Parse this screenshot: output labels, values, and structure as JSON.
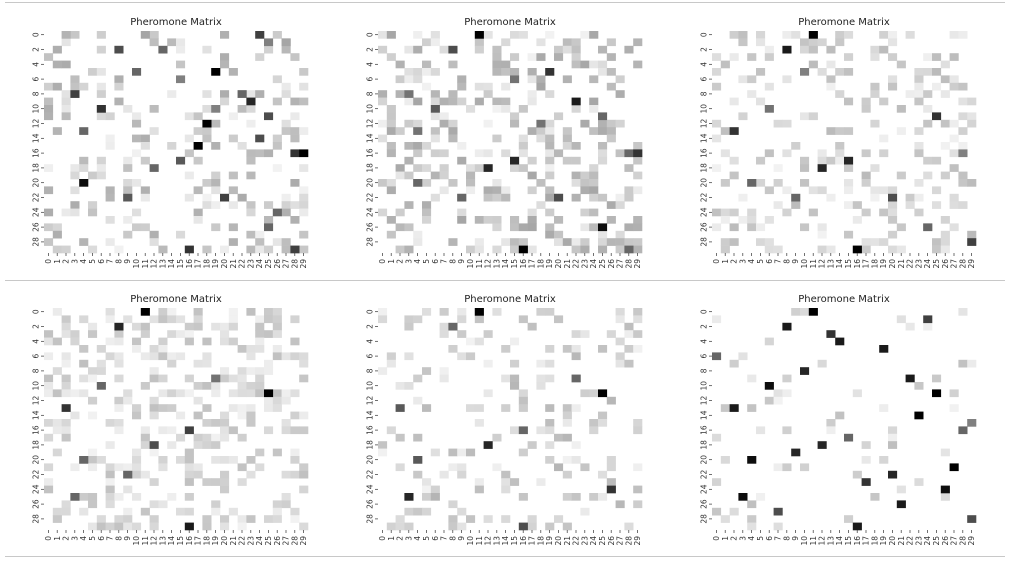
{
  "chart_data": [
    {
      "type": "heatmap",
      "title": "Pheromone Matrix",
      "xlabel": "",
      "ylabel": "",
      "x_ticks": [
        "0",
        "1",
        "2",
        "3",
        "4",
        "5",
        "6",
        "7",
        "8",
        "9",
        "10",
        "11",
        "12",
        "13",
        "14",
        "15",
        "16",
        "17",
        "18",
        "19",
        "20",
        "21",
        "22",
        "23",
        "24",
        "25",
        "26",
        "27",
        "28",
        "29"
      ],
      "y_ticks": [
        "0",
        "2",
        "4",
        "6",
        "8",
        "10",
        "12",
        "14",
        "16",
        "18",
        "20",
        "22",
        "24",
        "26",
        "28"
      ],
      "colormap": "Greys",
      "cells": [
        {
          "row": 0,
          "col": 2,
          "value": 0.3
        },
        {
          "row": 0,
          "col": 11,
          "value": 0.35
        },
        {
          "row": 0,
          "col": 24,
          "value": 0.75
        },
        {
          "row": 1,
          "col": 25,
          "value": 0.5
        },
        {
          "row": 1,
          "col": 27,
          "value": 0.35
        },
        {
          "row": 2,
          "col": 13,
          "value": 0.6
        },
        {
          "row": 2,
          "col": 8,
          "value": 0.7
        },
        {
          "row": 5,
          "col": 19,
          "value": 1.0
        },
        {
          "row": 5,
          "col": 10,
          "value": 0.6
        },
        {
          "row": 6,
          "col": 15,
          "value": 0.5
        },
        {
          "row": 8,
          "col": 3,
          "value": 0.75
        },
        {
          "row": 8,
          "col": 22,
          "value": 0.6
        },
        {
          "row": 9,
          "col": 23,
          "value": 0.85
        },
        {
          "row": 10,
          "col": 6,
          "value": 0.8
        },
        {
          "row": 10,
          "col": 19,
          "value": 0.5
        },
        {
          "row": 11,
          "col": 25,
          "value": 0.7
        },
        {
          "row": 12,
          "col": 18,
          "value": 1.0
        },
        {
          "row": 13,
          "col": 4,
          "value": 0.6
        },
        {
          "row": 14,
          "col": 24,
          "value": 0.7
        },
        {
          "row": 15,
          "col": 17,
          "value": 1.0
        },
        {
          "row": 16,
          "col": 28,
          "value": 0.8
        },
        {
          "row": 16,
          "col": 29,
          "value": 1.0
        },
        {
          "row": 17,
          "col": 15,
          "value": 0.65
        },
        {
          "row": 18,
          "col": 12,
          "value": 0.6
        },
        {
          "row": 20,
          "col": 4,
          "value": 0.95
        },
        {
          "row": 22,
          "col": 9,
          "value": 0.65
        },
        {
          "row": 22,
          "col": 20,
          "value": 0.75
        },
        {
          "row": 24,
          "col": 26,
          "value": 0.6
        },
        {
          "row": 26,
          "col": 25,
          "value": 0.6
        },
        {
          "row": 29,
          "col": 16,
          "value": 0.8
        },
        {
          "row": 29,
          "col": 28,
          "value": 0.75
        }
      ]
    },
    {
      "type": "heatmap",
      "title": "Pheromone Matrix",
      "xlabel": "",
      "ylabel": "",
      "x_ticks": [
        "0",
        "1",
        "2",
        "3",
        "4",
        "5",
        "6",
        "7",
        "8",
        "9",
        "10",
        "11",
        "12",
        "13",
        "14",
        "15",
        "16",
        "17",
        "18",
        "19",
        "20",
        "21",
        "22",
        "23",
        "24",
        "25",
        "26",
        "27",
        "28",
        "29"
      ],
      "y_ticks": [
        "0",
        "2",
        "4",
        "6",
        "8",
        "10",
        "12",
        "14",
        "16",
        "18",
        "20",
        "22",
        "24",
        "26",
        "28"
      ],
      "colormap": "Greys",
      "cells": [
        {
          "row": 0,
          "col": 11,
          "value": 1.0
        },
        {
          "row": 2,
          "col": 8,
          "value": 0.7
        },
        {
          "row": 5,
          "col": 19,
          "value": 0.8
        },
        {
          "row": 6,
          "col": 15,
          "value": 0.55
        },
        {
          "row": 8,
          "col": 3,
          "value": 0.55
        },
        {
          "row": 9,
          "col": 22,
          "value": 0.9
        },
        {
          "row": 10,
          "col": 6,
          "value": 0.65
        },
        {
          "row": 11,
          "col": 25,
          "value": 0.6
        },
        {
          "row": 12,
          "col": 18,
          "value": 0.55
        },
        {
          "row": 13,
          "col": 4,
          "value": 0.55
        },
        {
          "row": 16,
          "col": 28,
          "value": 0.6
        },
        {
          "row": 16,
          "col": 29,
          "value": 0.8
        },
        {
          "row": 17,
          "col": 15,
          "value": 0.85
        },
        {
          "row": 18,
          "col": 12,
          "value": 0.85
        },
        {
          "row": 20,
          "col": 4,
          "value": 0.6
        },
        {
          "row": 22,
          "col": 9,
          "value": 0.6
        },
        {
          "row": 22,
          "col": 20,
          "value": 0.7
        },
        {
          "row": 26,
          "col": 25,
          "value": 0.95
        },
        {
          "row": 29,
          "col": 16,
          "value": 1.0
        },
        {
          "row": 29,
          "col": 28,
          "value": 0.6
        }
      ]
    },
    {
      "type": "heatmap",
      "title": "Pheromone Matrix",
      "xlabel": "",
      "ylabel": "",
      "x_ticks": [
        "0",
        "1",
        "2",
        "3",
        "4",
        "5",
        "6",
        "7",
        "8",
        "9",
        "10",
        "11",
        "12",
        "13",
        "14",
        "15",
        "16",
        "17",
        "18",
        "19",
        "20",
        "21",
        "22",
        "23",
        "24",
        "25",
        "26",
        "27",
        "28",
        "29"
      ],
      "y_ticks": [
        "0",
        "2",
        "4",
        "6",
        "8",
        "10",
        "12",
        "14",
        "16",
        "18",
        "20",
        "22",
        "24",
        "26",
        "28"
      ],
      "colormap": "Greys",
      "cells": [
        {
          "row": 0,
          "col": 11,
          "value": 1.0
        },
        {
          "row": 2,
          "col": 8,
          "value": 0.9
        },
        {
          "row": 5,
          "col": 10,
          "value": 0.5
        },
        {
          "row": 10,
          "col": 6,
          "value": 0.55
        },
        {
          "row": 11,
          "col": 25,
          "value": 0.8
        },
        {
          "row": 13,
          "col": 2,
          "value": 0.8
        },
        {
          "row": 16,
          "col": 28,
          "value": 0.5
        },
        {
          "row": 17,
          "col": 15,
          "value": 0.85
        },
        {
          "row": 18,
          "col": 12,
          "value": 0.85
        },
        {
          "row": 20,
          "col": 4,
          "value": 0.6
        },
        {
          "row": 22,
          "col": 9,
          "value": 0.6
        },
        {
          "row": 22,
          "col": 20,
          "value": 0.7
        },
        {
          "row": 26,
          "col": 24,
          "value": 0.6
        },
        {
          "row": 29,
          "col": 16,
          "value": 1.0
        },
        {
          "row": 28,
          "col": 29,
          "value": 0.75
        }
      ]
    },
    {
      "type": "heatmap",
      "title": "Pheromone Matrix",
      "xlabel": "",
      "ylabel": "",
      "x_ticks": [
        "0",
        "1",
        "2",
        "3",
        "4",
        "5",
        "6",
        "7",
        "8",
        "9",
        "10",
        "11",
        "12",
        "13",
        "14",
        "15",
        "16",
        "17",
        "18",
        "19",
        "20",
        "21",
        "22",
        "23",
        "24",
        "25",
        "26",
        "27",
        "28",
        "29"
      ],
      "y_ticks": [
        "0",
        "2",
        "4",
        "6",
        "8",
        "10",
        "12",
        "14",
        "16",
        "18",
        "20",
        "22",
        "24",
        "26",
        "28"
      ],
      "colormap": "Greys",
      "cells": [
        {
          "row": 0,
          "col": 11,
          "value": 1.0
        },
        {
          "row": 2,
          "col": 8,
          "value": 0.85
        },
        {
          "row": 9,
          "col": 19,
          "value": 0.55
        },
        {
          "row": 10,
          "col": 6,
          "value": 0.6
        },
        {
          "row": 11,
          "col": 25,
          "value": 1.0
        },
        {
          "row": 13,
          "col": 2,
          "value": 0.8
        },
        {
          "row": 16,
          "col": 16,
          "value": 0.75
        },
        {
          "row": 18,
          "col": 12,
          "value": 0.7
        },
        {
          "row": 20,
          "col": 4,
          "value": 0.6
        },
        {
          "row": 22,
          "col": 9,
          "value": 0.6
        },
        {
          "row": 25,
          "col": 3,
          "value": 0.6
        },
        {
          "row": 29,
          "col": 16,
          "value": 0.9
        }
      ]
    },
    {
      "type": "heatmap",
      "title": "Pheromone Matrix",
      "xlabel": "",
      "ylabel": "",
      "x_ticks": [
        "0",
        "1",
        "2",
        "3",
        "4",
        "5",
        "6",
        "7",
        "8",
        "9",
        "10",
        "11",
        "12",
        "13",
        "14",
        "15",
        "16",
        "17",
        "18",
        "19",
        "20",
        "21",
        "22",
        "23",
        "24",
        "25",
        "26",
        "27",
        "28",
        "29"
      ],
      "y_ticks": [
        "0",
        "2",
        "4",
        "6",
        "8",
        "10",
        "12",
        "14",
        "16",
        "18",
        "20",
        "22",
        "24",
        "26",
        "28"
      ],
      "colormap": "Greys",
      "cells": [
        {
          "row": 0,
          "col": 11,
          "value": 1.0
        },
        {
          "row": 2,
          "col": 8,
          "value": 0.6
        },
        {
          "row": 9,
          "col": 22,
          "value": 0.6
        },
        {
          "row": 11,
          "col": 25,
          "value": 1.0
        },
        {
          "row": 13,
          "col": 2,
          "value": 0.65
        },
        {
          "row": 16,
          "col": 16,
          "value": 0.6
        },
        {
          "row": 18,
          "col": 12,
          "value": 0.85
        },
        {
          "row": 20,
          "col": 4,
          "value": 0.65
        },
        {
          "row": 25,
          "col": 3,
          "value": 0.85
        },
        {
          "row": 24,
          "col": 26,
          "value": 0.8
        },
        {
          "row": 29,
          "col": 16,
          "value": 0.7
        }
      ]
    },
    {
      "type": "heatmap",
      "title": "Pheromone Matrix",
      "xlabel": "",
      "ylabel": "",
      "x_ticks": [
        "0",
        "1",
        "2",
        "3",
        "4",
        "5",
        "6",
        "7",
        "8",
        "9",
        "10",
        "11",
        "12",
        "13",
        "14",
        "15",
        "16",
        "17",
        "18",
        "19",
        "20",
        "21",
        "22",
        "23",
        "24",
        "25",
        "26",
        "27",
        "28",
        "29"
      ],
      "y_ticks": [
        "0",
        "2",
        "4",
        "6",
        "8",
        "10",
        "12",
        "14",
        "16",
        "18",
        "20",
        "22",
        "24",
        "26",
        "28"
      ],
      "colormap": "Greys",
      "cells": [
        {
          "row": 0,
          "col": 11,
          "value": 1.0
        },
        {
          "row": 1,
          "col": 24,
          "value": 0.75
        },
        {
          "row": 2,
          "col": 8,
          "value": 0.9
        },
        {
          "row": 3,
          "col": 13,
          "value": 0.8
        },
        {
          "row": 4,
          "col": 14,
          "value": 0.9
        },
        {
          "row": 5,
          "col": 19,
          "value": 0.9
        },
        {
          "row": 6,
          "col": 0,
          "value": 0.6
        },
        {
          "row": 8,
          "col": 10,
          "value": 0.85
        },
        {
          "row": 9,
          "col": 22,
          "value": 0.9
        },
        {
          "row": 10,
          "col": 6,
          "value": 0.95
        },
        {
          "row": 11,
          "col": 25,
          "value": 1.0
        },
        {
          "row": 13,
          "col": 2,
          "value": 0.9
        },
        {
          "row": 14,
          "col": 23,
          "value": 1.0
        },
        {
          "row": 15,
          "col": 29,
          "value": 0.5
        },
        {
          "row": 16,
          "col": 28,
          "value": 0.6
        },
        {
          "row": 17,
          "col": 15,
          "value": 0.6
        },
        {
          "row": 18,
          "col": 12,
          "value": 0.85
        },
        {
          "row": 19,
          "col": 9,
          "value": 0.85
        },
        {
          "row": 20,
          "col": 4,
          "value": 0.95
        },
        {
          "row": 21,
          "col": 27,
          "value": 1.0
        },
        {
          "row": 22,
          "col": 20,
          "value": 0.85
        },
        {
          "row": 23,
          "col": 17,
          "value": 0.8
        },
        {
          "row": 24,
          "col": 26,
          "value": 0.95
        },
        {
          "row": 25,
          "col": 3,
          "value": 0.95
        },
        {
          "row": 26,
          "col": 21,
          "value": 0.9
        },
        {
          "row": 27,
          "col": 7,
          "value": 0.7
        },
        {
          "row": 28,
          "col": 29,
          "value": 0.7
        },
        {
          "row": 29,
          "col": 16,
          "value": 0.9
        }
      ]
    }
  ]
}
